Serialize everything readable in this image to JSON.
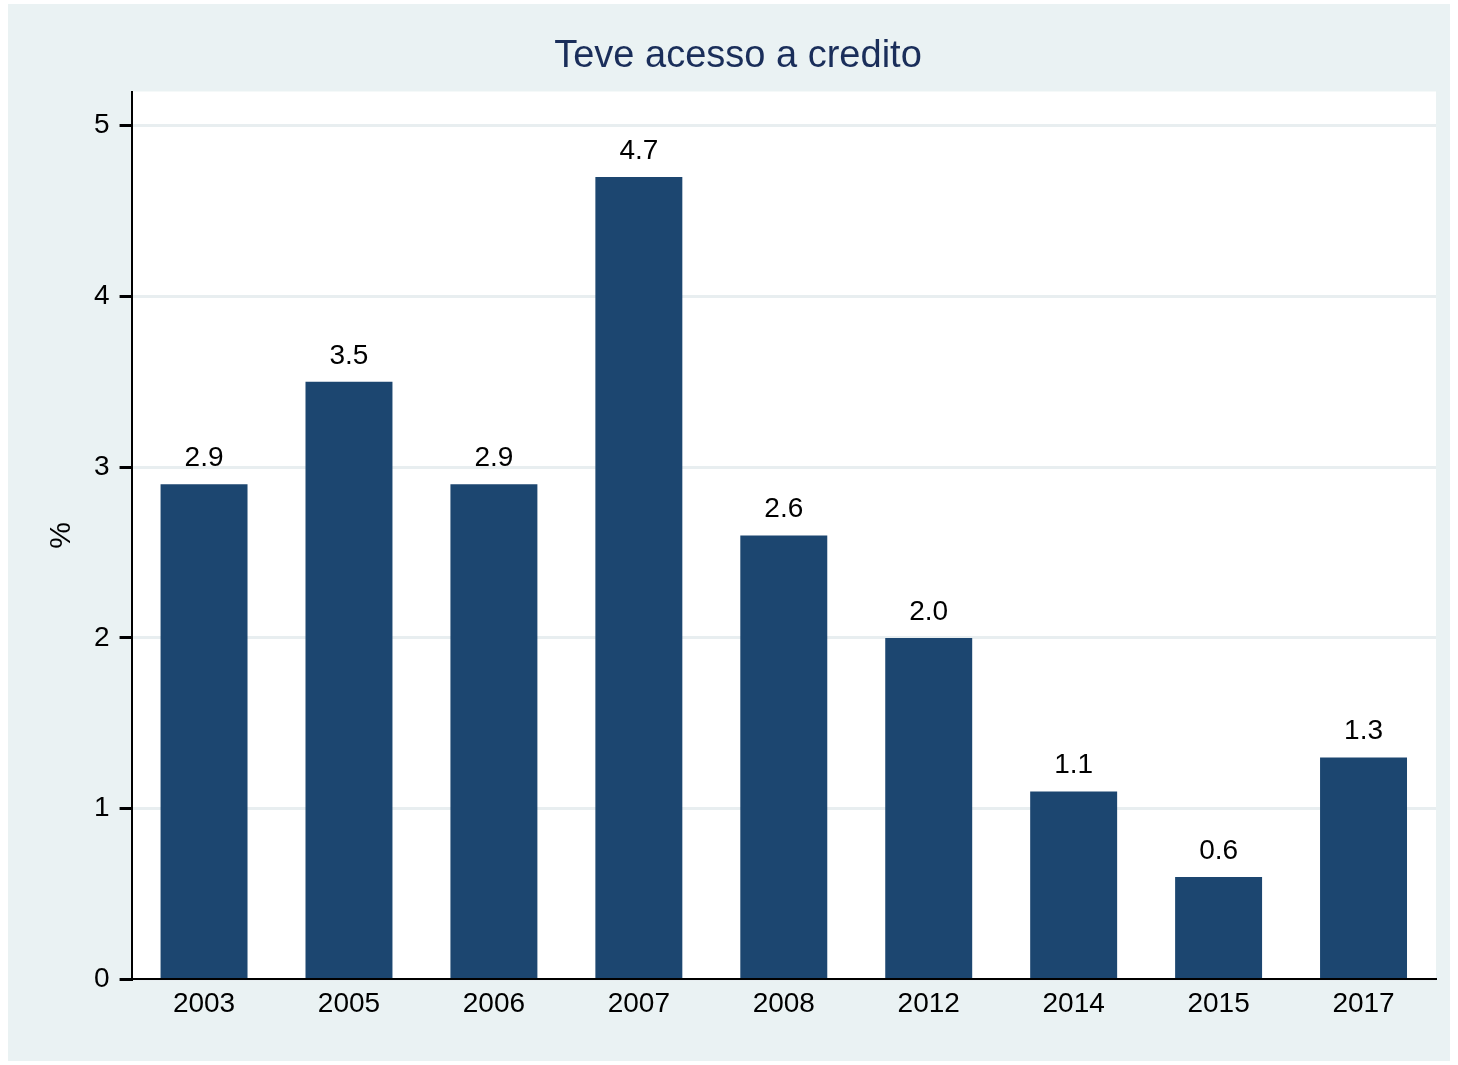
{
  "chart_data": {
    "type": "bar",
    "title": "Teve acesso a credito",
    "ylabel": "%",
    "categories": [
      "2003",
      "2005",
      "2006",
      "2007",
      "2008",
      "2012",
      "2014",
      "2015",
      "2017"
    ],
    "values": [
      2.9,
      3.5,
      2.9,
      4.7,
      2.6,
      2.0,
      1.1,
      0.6,
      1.3
    ],
    "value_labels": [
      "2.9",
      "3.5",
      "2.9",
      "4.7",
      "2.6",
      "2.0",
      "1.1",
      "0.6",
      "1.3"
    ],
    "color": "#1c4670",
    "ylim": [
      0,
      5.2
    ],
    "yticks": [
      0,
      1,
      2,
      3,
      4,
      5
    ],
    "grid": "y",
    "legend": false
  }
}
